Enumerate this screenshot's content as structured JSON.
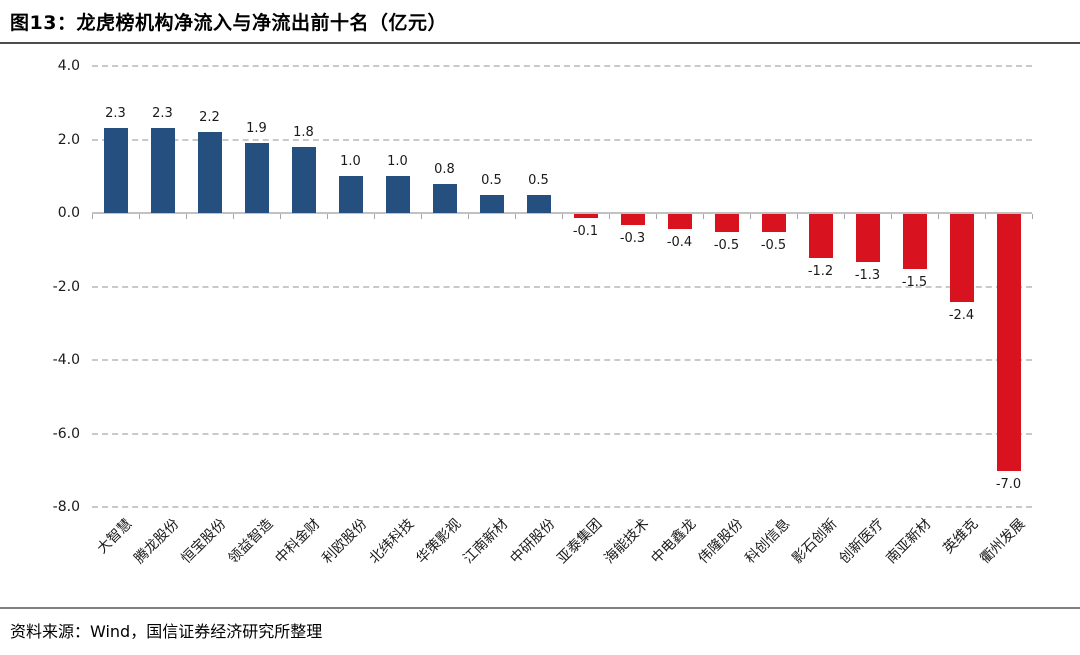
{
  "page": {
    "title": "图13：龙虎榜机构净流入与净流出前十名（亿元）",
    "source": "资料来源：Wind，国信证券经济研究所整理"
  },
  "chart_data": {
    "type": "bar",
    "title": "图13：龙虎榜机构净流入与净流出前十名（亿元）",
    "unit": "亿元",
    "categories": [
      "大智慧",
      "腾龙股份",
      "恒宝股份",
      "领益智造",
      "中科金财",
      "利欧股份",
      "北纬科技",
      "华策影视",
      "江南新材",
      "中研股份",
      "亚泰集团",
      "海能技术",
      "中电鑫龙",
      "伟隆股份",
      "科创信息",
      "影石创新",
      "创新医疗",
      "南亚新材",
      "英维克",
      "衢州发展"
    ],
    "values": [
      2.3,
      2.3,
      2.2,
      1.9,
      1.8,
      1.0,
      1.0,
      0.8,
      0.5,
      0.5,
      -0.1,
      -0.3,
      -0.4,
      -0.5,
      -0.5,
      -1.2,
      -1.3,
      -1.5,
      -2.4,
      -7.0
    ],
    "value_labels": [
      "2.3",
      "2.3",
      "2.2",
      "1.9",
      "1.8",
      "1.0",
      "1.0",
      "0.8",
      "0.5",
      "0.5",
      "-0.1",
      "-0.3",
      "-0.4",
      "-0.5",
      "-0.5",
      "-1.2",
      "-1.3",
      "-1.5",
      "-2.4",
      "-7.0"
    ],
    "y_ticks": [
      4.0,
      2.0,
      0.0,
      -2.0,
      -4.0,
      -6.0,
      -8.0
    ],
    "y_tick_labels": [
      "4.0",
      "2.0",
      "0.0",
      "-2.0",
      "-4.0",
      "-6.0",
      "-8.0"
    ],
    "ylim": [
      -8.0,
      4.0
    ],
    "grid": "horizontal-dashed",
    "legend": "none",
    "colors": {
      "positive_bar": "#254f7e",
      "negative_bar": "#d9121f",
      "gridline": "#c9c9c9",
      "title_divider": "#4d4d4d",
      "bottom_divider": "#7f7f7f"
    }
  }
}
